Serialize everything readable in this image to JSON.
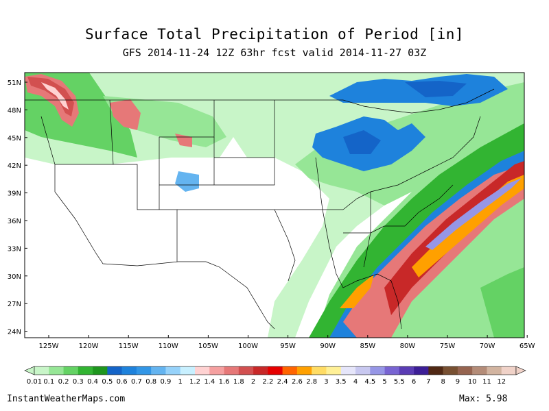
{
  "title": "Surface Total Precipitation of Period [in]",
  "subtitle": "GFS 2014-11-24 12Z 63hr fcst valid 2014-11-27 03Z",
  "lat_labels": [
    "51N",
    "48N",
    "45N",
    "42N",
    "39N",
    "36N",
    "33N",
    "30N",
    "27N",
    "24N"
  ],
  "lon_labels": [
    "125W",
    "120W",
    "115W",
    "110W",
    "105W",
    "100W",
    "95W",
    "90W",
    "85W",
    "80W",
    "75W",
    "70W",
    "65W"
  ],
  "legend": {
    "labels": [
      "0.01",
      "0.1",
      "0.2",
      "0.3",
      "0.4",
      "0.5",
      "0.6",
      "0.7",
      "0.8",
      "0.9",
      "1",
      "1.2",
      "1.4",
      "1.6",
      "1.8",
      "2",
      "2.2",
      "2.4",
      "2.6",
      "2.8",
      "3",
      "3.5",
      "4",
      "4.5",
      "5",
      "5.5",
      "6",
      "7",
      "8",
      "9",
      "10",
      "11",
      "12"
    ],
    "colors": [
      "#c8f5c8",
      "#96e696",
      "#64d264",
      "#32b432",
      "#1e961e",
      "#1464c8",
      "#1e82dc",
      "#3296e6",
      "#64b4f0",
      "#96d2fa",
      "#c8f0ff",
      "#ffd2d2",
      "#f5a0a0",
      "#e67878",
      "#d25050",
      "#c82828",
      "#e60000",
      "#ff6400",
      "#ffa000",
      "#ffdc64",
      "#fff096",
      "#e6e6fa",
      "#c8c8f0",
      "#9696e6",
      "#7864d2",
      "#5a3cb4",
      "#3c1e96",
      "#502814",
      "#785032",
      "#966450",
      "#b48c78",
      "#d2b4a0",
      "#f0d2c8"
    ]
  },
  "footer": {
    "site": "InstantWeatherMaps.com",
    "max": "Max:  5.98"
  }
}
